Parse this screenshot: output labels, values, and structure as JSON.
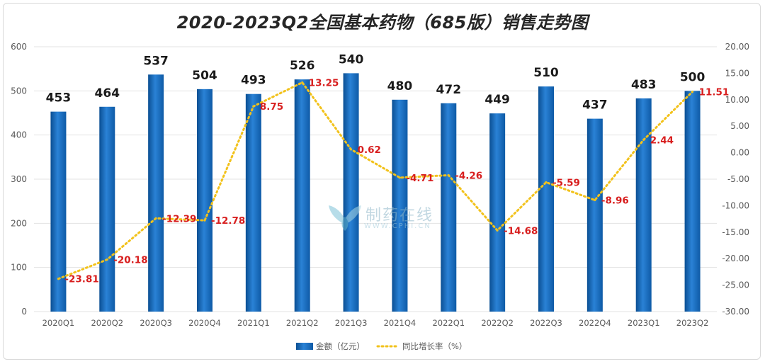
{
  "chart_data": {
    "type": "bar",
    "title": "2020-2023Q2全国基本药物（685版）销售走势图",
    "categories": [
      "2020Q1",
      "2020Q2",
      "2020Q3",
      "2020Q4",
      "2021Q1",
      "2021Q2",
      "2021Q3",
      "2021Q4",
      "2022Q1",
      "2022Q2",
      "2022Q3",
      "2022Q4",
      "2023Q1",
      "2023Q2"
    ],
    "series": [
      {
        "name": "金额（亿元）",
        "type": "bar",
        "axis": "left",
        "values": [
          453,
          464,
          537,
          504,
          493,
          526,
          540,
          480,
          472,
          449,
          510,
          437,
          483,
          500
        ],
        "labels": [
          "453",
          "464",
          "537",
          "504",
          "493",
          "526",
          "540",
          "480",
          "472",
          "449",
          "510",
          "437",
          "483",
          "500"
        ],
        "color": "#1f6fbf"
      },
      {
        "name": "同比增长率（%）",
        "type": "line",
        "axis": "right",
        "values": [
          -23.81,
          -20.18,
          -12.39,
          -12.78,
          8.75,
          13.25,
          0.62,
          -4.71,
          -4.26,
          -14.68,
          -5.59,
          -8.96,
          2.44,
          11.51
        ],
        "labels": [
          "-23.81",
          "-20.18",
          "-12.39",
          "-12.78",
          "8.75",
          "13.25",
          "0.62",
          "-4.71",
          "-4.26",
          "-14.68",
          "-5.59",
          "-8.96",
          "2.44",
          "11.51"
        ],
        "color": "#f2c21b"
      }
    ],
    "y_left": {
      "min": 0,
      "max": 600,
      "ticks": [
        "0",
        "100",
        "200",
        "300",
        "400",
        "500",
        "600"
      ]
    },
    "y_right": {
      "min": -30,
      "max": 20,
      "ticks": [
        "-30.00",
        "-25.00",
        "-20.00",
        "-15.00",
        "-10.00",
        "-5.00",
        "0.00",
        "5.00",
        "10.00",
        "15.00",
        "20.00"
      ]
    },
    "grid": true,
    "legend_position": "bottom"
  },
  "watermark": {
    "text": "制药在线",
    "sub": "WWW.CPHI.CN"
  },
  "colors": {
    "bar": "#1f6fbf",
    "line": "#f2c21b",
    "line_label": "#d81e1e",
    "bar_label": "#1a1a1a",
    "grid": "#e3e3e3",
    "axis_text": "#595959"
  }
}
